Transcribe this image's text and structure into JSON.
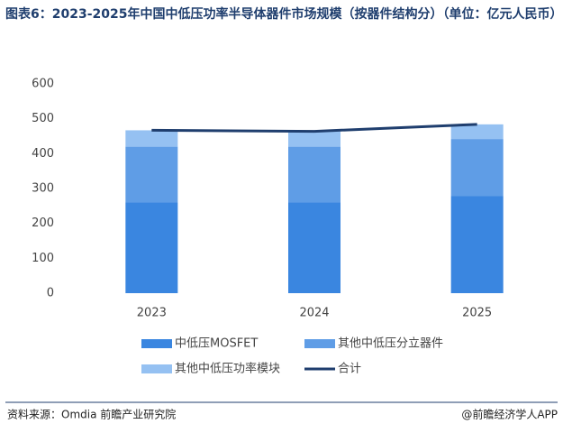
{
  "chart_data": {
    "type": "bar",
    "stacked": true,
    "title": "图表6：2023-2025年中国中低压功率半导体器件市场规模（按器件结构分）（单位：亿元人民币）",
    "categories": [
      "2023",
      "2024",
      "2025"
    ],
    "series": [
      {
        "name": "中低压MOSFET",
        "color": "#3a86e0",
        "values": [
          260,
          260,
          278
        ]
      },
      {
        "name": "其他中低压分立器件",
        "color": "#5f9de6",
        "values": [
          160,
          160,
          164
        ]
      },
      {
        "name": "其他中低压功率模块",
        "color": "#95c1f2",
        "values": [
          47,
          44,
          42
        ]
      },
      {
        "name": "合计",
        "color": "#1f3e6e",
        "type": "line",
        "values": [
          467,
          464,
          484
        ]
      }
    ],
    "ylim": [
      0,
      600
    ],
    "yticks": [
      0,
      100,
      200,
      300,
      400,
      500,
      600
    ],
    "grid": false,
    "source": "资料来源：Omdia  前瞻产业研究院",
    "credit": "@前瞻经济学人APP"
  }
}
